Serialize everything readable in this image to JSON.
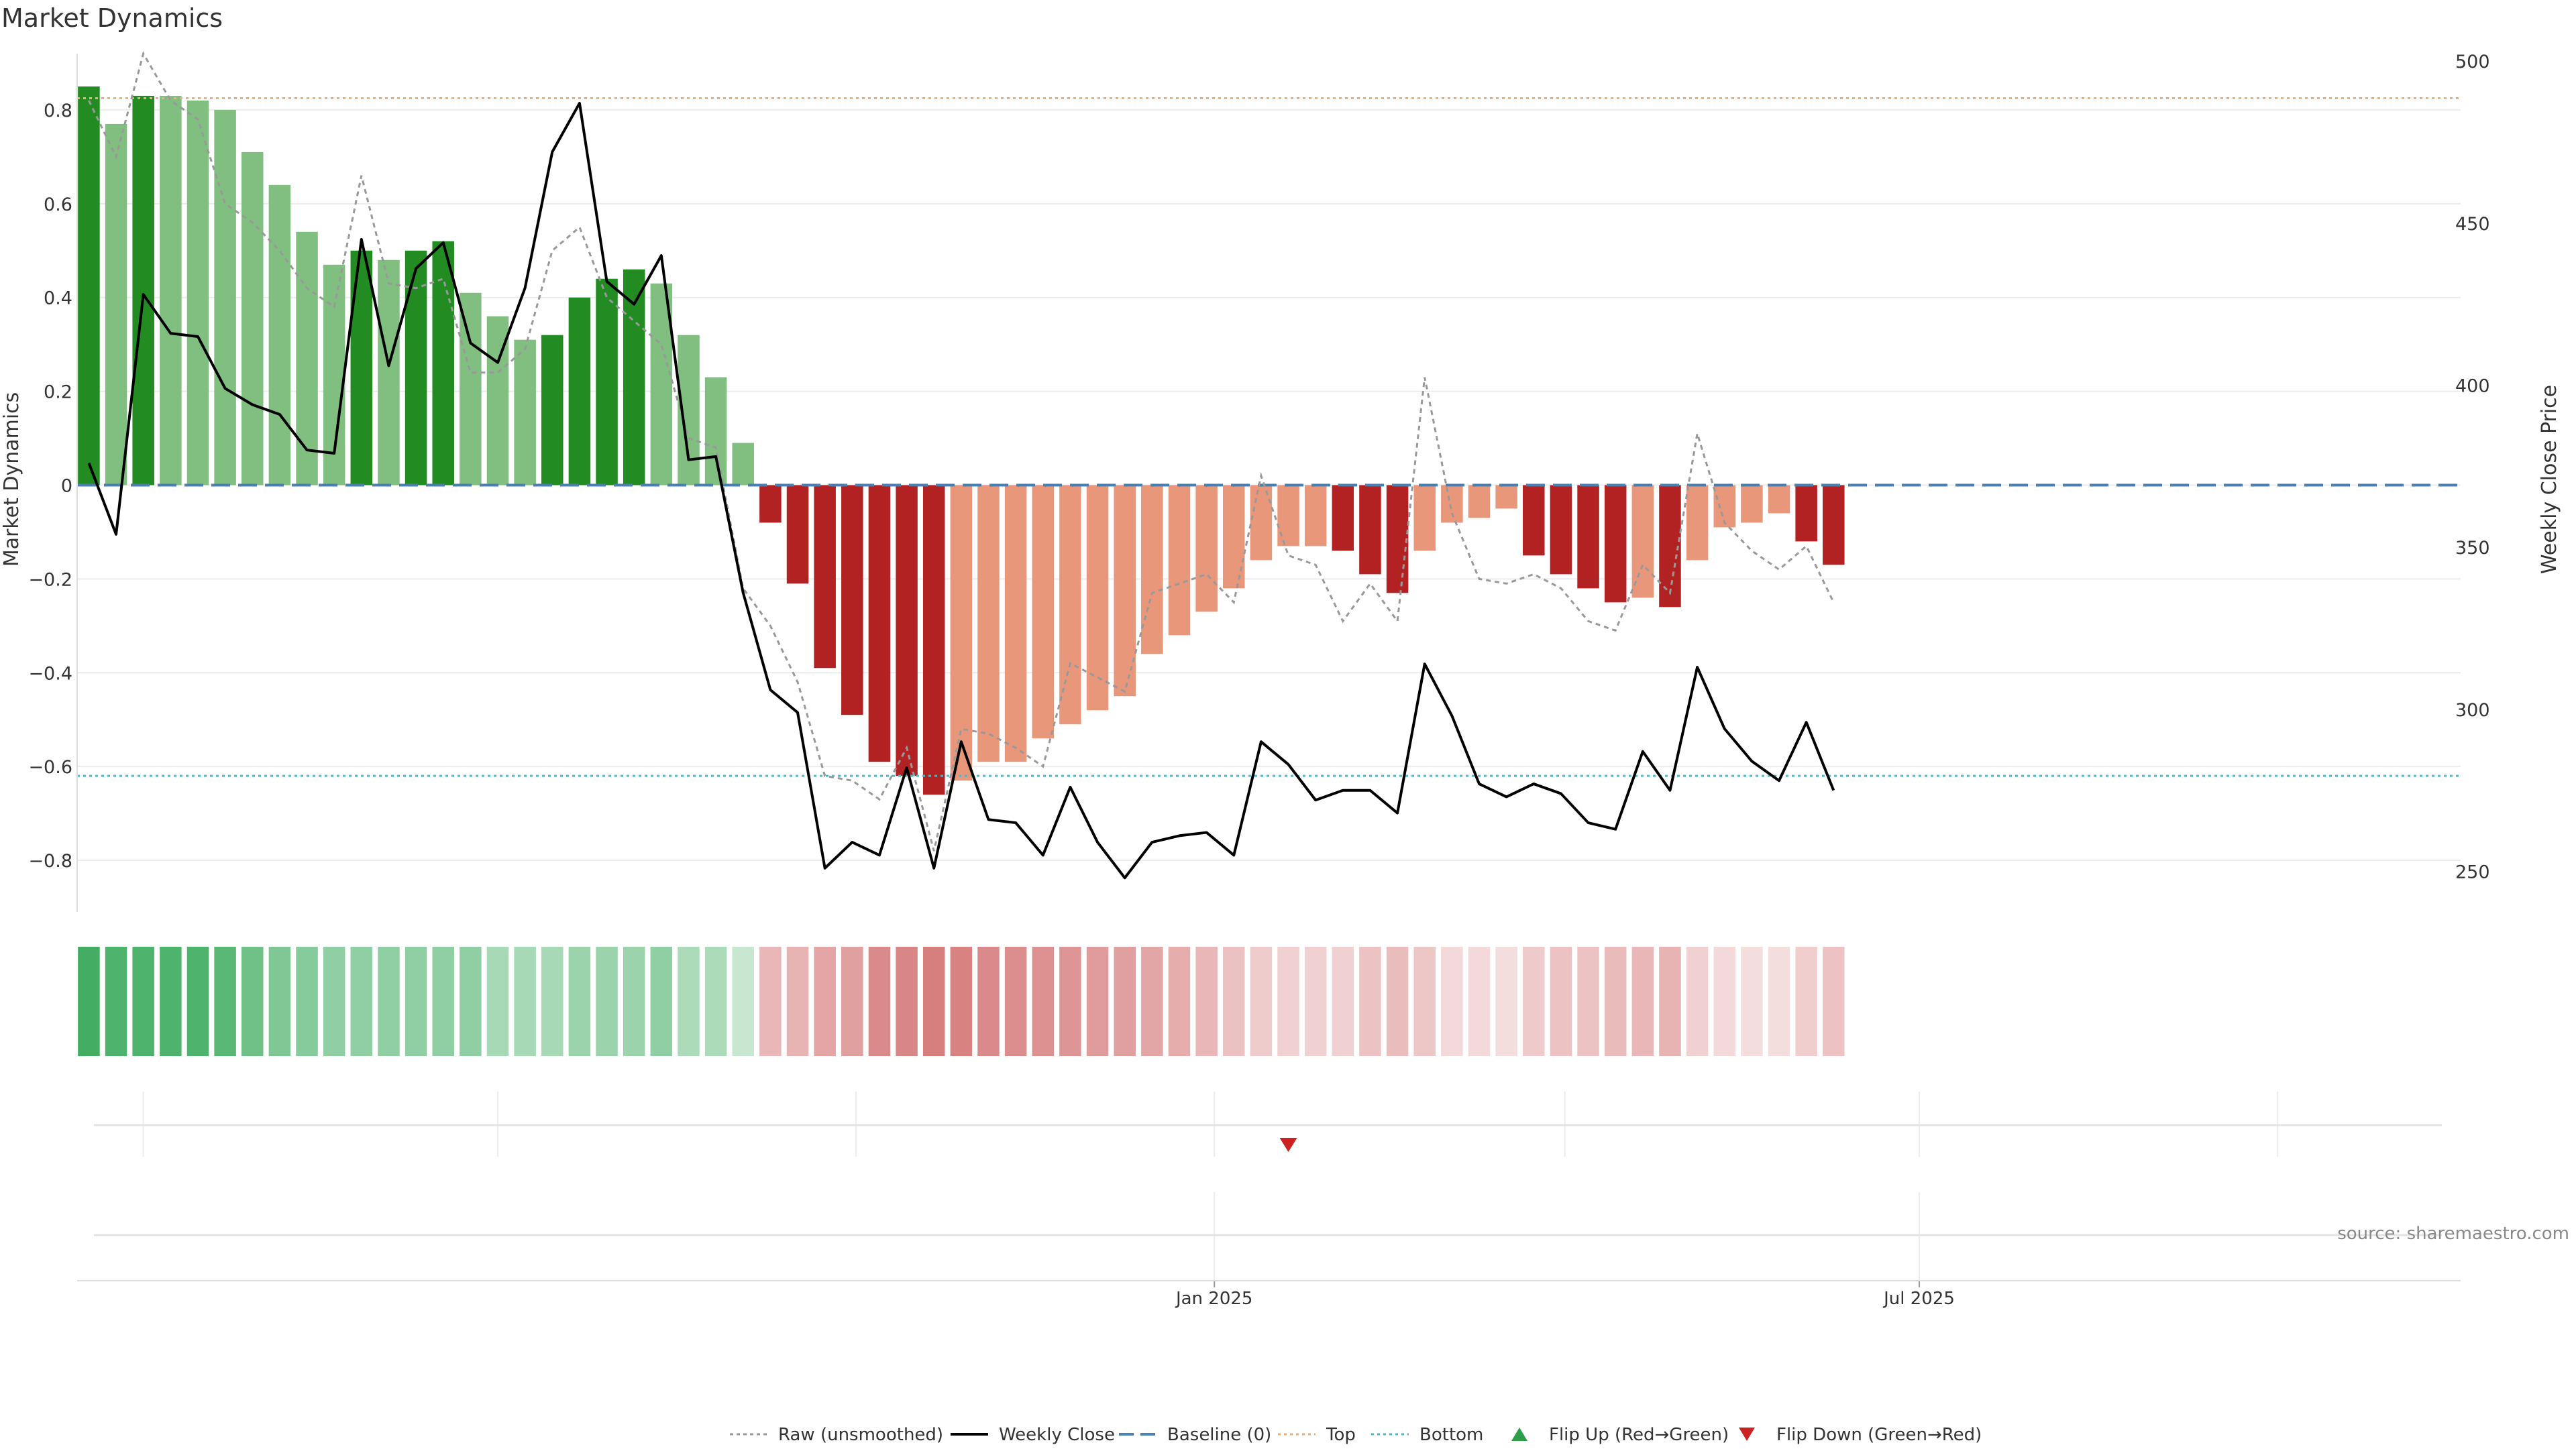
{
  "chart_data": {
    "type": "bar",
    "title": "Market Dynamics",
    "ylabel": "Market Dynamics",
    "y2label": "Weekly Close Price",
    "ylim": [
      -0.91,
      0.92
    ],
    "y2lim": [
      237.5,
      502.3
    ],
    "yticks": [
      0.8,
      0.6,
      0.4,
      0.2,
      0,
      -0.2,
      -0.4,
      -0.6,
      -0.8
    ],
    "ytick_labels": [
      "0.8",
      "0.6",
      "0.4",
      "0.2",
      "0",
      "−0.2",
      "−0.4",
      "−0.6",
      "−0.8"
    ],
    "y2ticks": [
      500,
      450,
      400,
      350,
      300,
      250
    ],
    "y2tick_labels": [
      "500",
      "450",
      "400",
      "350",
      "300",
      "250"
    ],
    "x_start": "2024-03-18",
    "x_step_days": 7,
    "xlim": [
      "2024-03-15",
      "2025-11-17"
    ],
    "xticks": [
      {
        "date": "2025-01-01",
        "label": "Jan 2025"
      },
      {
        "date": "2025-07-01",
        "label": "Jul 2025"
      }
    ],
    "monthly_grid": [
      "2024-04-01",
      "2024-07-01",
      "2024-10-01",
      "2025-01-01",
      "2025-04-01",
      "2025-07-01",
      "2025-10-01"
    ],
    "top_level": 0.825,
    "bottom_level": -0.62,
    "baseline": 0,
    "grid": true,
    "legend_position": "bottom-center",
    "source": "source: sharemaestro.com",
    "colors": {
      "strong_green": "#228b22",
      "light_green": "#80bf80",
      "strong_red": "#b22222",
      "light_red": "#e9977a",
      "close_line": "#000000",
      "raw_line": "#999999",
      "baseline": "#4a7fb0",
      "top": "#e8b07a",
      "bottom": "#4fb8c8",
      "flip_up": "#2e9e4a",
      "flip_down": "#cc2222"
    },
    "series": [
      {
        "name": "Market Dynamics",
        "values": [
          0.85,
          0.77,
          0.83,
          0.83,
          0.82,
          0.8,
          0.71,
          0.64,
          0.54,
          0.47,
          0.5,
          0.48,
          0.5,
          0.52,
          0.41,
          0.36,
          0.31,
          0.32,
          0.4,
          0.44,
          0.46,
          0.43,
          0.32,
          0.23,
          0.09,
          -0.08,
          -0.21,
          -0.39,
          -0.49,
          -0.59,
          -0.62,
          -0.66,
          -0.63,
          -0.59,
          -0.59,
          -0.54,
          -0.51,
          -0.48,
          -0.45,
          -0.36,
          -0.32,
          -0.27,
          -0.22,
          -0.16,
          -0.13,
          -0.13,
          -0.14,
          -0.19,
          -0.23,
          -0.14,
          -0.08,
          -0.07,
          -0.05,
          -0.15,
          -0.19,
          -0.22,
          -0.25,
          -0.24,
          -0.26,
          -0.16,
          -0.09,
          -0.08,
          -0.06,
          -0.12,
          -0.17
        ],
        "strength": [
          "strong",
          "light",
          "strong",
          "light",
          "light",
          "light",
          "light",
          "light",
          "light",
          "light",
          "strong",
          "light",
          "strong",
          "strong",
          "light",
          "light",
          "light",
          "strong",
          "strong",
          "strong",
          "strong",
          "light",
          "light",
          "light",
          "light",
          "strong",
          "strong",
          "strong",
          "strong",
          "strong",
          "strong",
          "strong",
          "light",
          "light",
          "light",
          "light",
          "light",
          "light",
          "light",
          "light",
          "light",
          "light",
          "light",
          "light",
          "light",
          "light",
          "strong",
          "strong",
          "strong",
          "light",
          "light",
          "light",
          "light",
          "strong",
          "strong",
          "strong",
          "strong",
          "light",
          "strong",
          "light",
          "light",
          "light",
          "light",
          "strong",
          "strong"
        ]
      },
      {
        "name": "Raw (unsmoothed)",
        "values": [
          0.82,
          0.7,
          0.92,
          0.82,
          0.78,
          0.6,
          0.56,
          0.5,
          0.42,
          0.38,
          0.66,
          0.43,
          0.42,
          0.44,
          0.24,
          0.24,
          0.29,
          0.5,
          0.55,
          0.4,
          0.35,
          0.3,
          0.1,
          0.08,
          -0.22,
          -0.3,
          -0.42,
          -0.62,
          -0.63,
          -0.67,
          -0.56,
          -0.78,
          -0.52,
          -0.53,
          -0.56,
          -0.6,
          -0.38,
          -0.41,
          -0.44,
          -0.23,
          -0.21,
          -0.19,
          -0.25,
          0.02,
          -0.15,
          -0.17,
          -0.29,
          -0.21,
          -0.29,
          0.23,
          -0.06,
          -0.2,
          -0.21,
          -0.19,
          -0.22,
          -0.29,
          -0.31,
          -0.17,
          -0.23,
          0.11,
          -0.08,
          -0.14,
          -0.18,
          -0.13,
          -0.25
        ]
      },
      {
        "name": "Weekly Close",
        "values": [
          376,
          354,
          428,
          416,
          415,
          399,
          394,
          391,
          380,
          379,
          445,
          406,
          436,
          444,
          413,
          407,
          430,
          472,
          487,
          432,
          425,
          440,
          377,
          378,
          336,
          306,
          299,
          251,
          259,
          255,
          282,
          251,
          290,
          266,
          265,
          255,
          276,
          259,
          248,
          259,
          261,
          262,
          255,
          290,
          283,
          272,
          275,
          275,
          268,
          314,
          298,
          277,
          273,
          277,
          274,
          265,
          263,
          287,
          275,
          313,
          294,
          284,
          278,
          296,
          275
        ]
      }
    ],
    "heat_strip": [
      0.85,
      0.8,
      0.8,
      0.8,
      0.8,
      0.75,
      0.65,
      0.58,
      0.55,
      0.5,
      0.5,
      0.5,
      0.5,
      0.5,
      0.5,
      0.4,
      0.4,
      0.4,
      0.45,
      0.45,
      0.45,
      0.5,
      0.38,
      0.38,
      0.25,
      0.38,
      0.4,
      0.48,
      0.5,
      0.62,
      0.64,
      0.68,
      0.66,
      0.62,
      0.6,
      0.58,
      0.56,
      0.52,
      0.5,
      0.47,
      0.43,
      0.38,
      0.33,
      0.27,
      0.25,
      0.25,
      0.25,
      0.32,
      0.35,
      0.3,
      0.2,
      0.2,
      0.18,
      0.28,
      0.32,
      0.32,
      0.36,
      0.38,
      0.4,
      0.25,
      0.2,
      0.18,
      0.18,
      0.26,
      0.32
    ],
    "flip_down_dates": [
      "2025-01-20"
    ],
    "flip_up_dates": [],
    "legend": [
      {
        "key": "raw",
        "label": "Raw (unsmoothed)",
        "style": "dotted"
      },
      {
        "key": "close",
        "label": "Weekly Close",
        "style": "solid"
      },
      {
        "key": "baseline",
        "label": "Baseline (0)",
        "style": "dashed"
      },
      {
        "key": "top",
        "label": "Top",
        "style": "dotted"
      },
      {
        "key": "bottom",
        "label": "Bottom",
        "style": "dotted"
      },
      {
        "key": "flip_up",
        "label": "Flip Up (Red→Green)",
        "style": "triangle-up"
      },
      {
        "key": "flip_down",
        "label": "Flip Down (Green→Red)",
        "style": "triangle-down"
      }
    ]
  }
}
